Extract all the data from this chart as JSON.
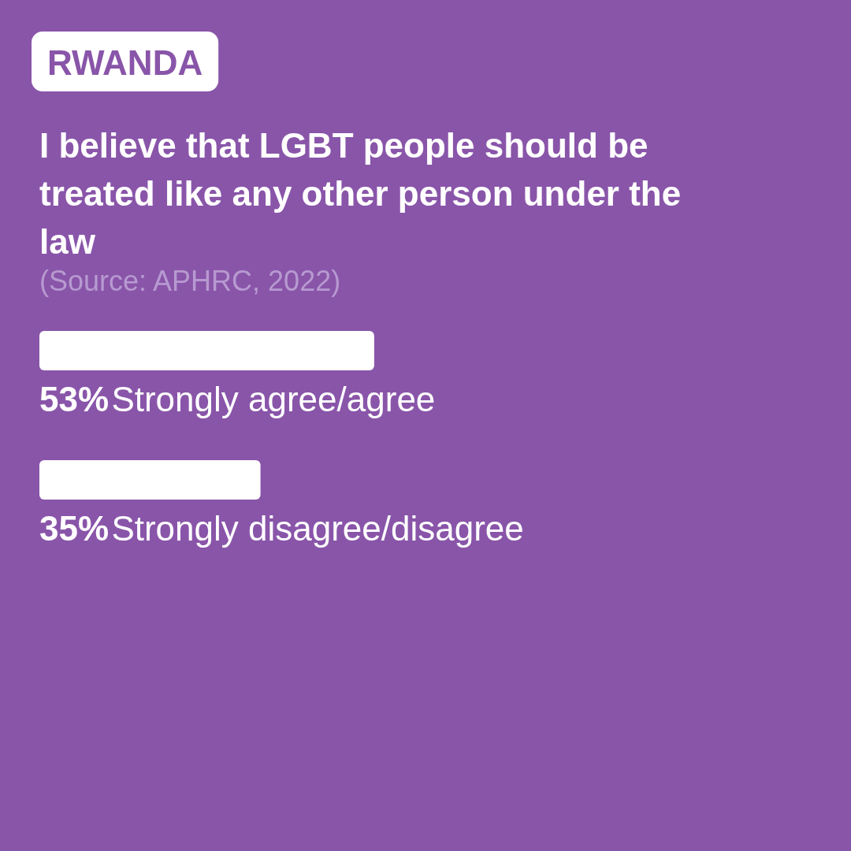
{
  "chart_data": {
    "type": "bar",
    "orientation": "horizontal",
    "subtitle": "RWANDA",
    "title": "I believe that LGBT people should be treated like any other person under the law",
    "annotations": [
      "(Source: APHRC, 2022)"
    ],
    "categories": [
      "Strongly agree/agree",
      "Strongly disagree/disagree"
    ],
    "values": [
      53,
      35
    ],
    "color": "#ffffff",
    "value_labels": [
      "53%",
      "35%"
    ],
    "tick_labels": false
  }
}
